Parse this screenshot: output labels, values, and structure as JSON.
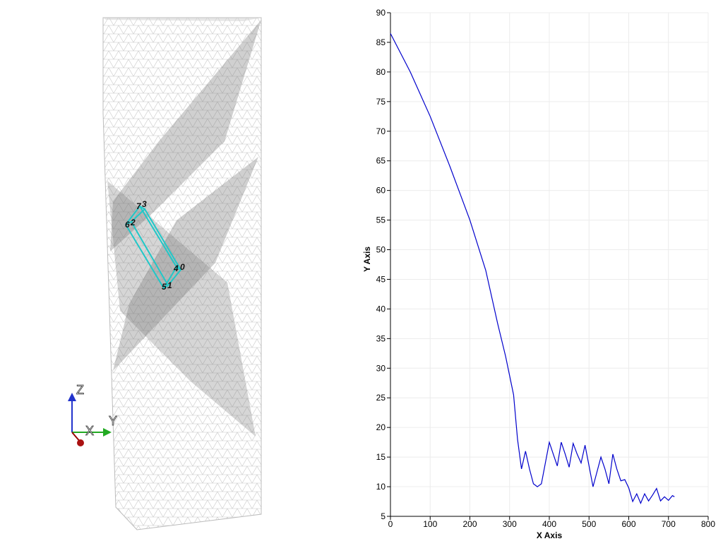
{
  "viewport": {
    "point_labels": [
      "7",
      "3",
      "6",
      "2",
      "4",
      "0",
      "5",
      "1"
    ],
    "axes_triad": {
      "x": "X",
      "y": "Y",
      "z": "Z"
    }
  },
  "chart_data": {
    "type": "line",
    "xlabel": "X Axis",
    "ylabel": "Y Axis",
    "xlim": [
      0,
      800
    ],
    "ylim": [
      5,
      90
    ],
    "xticks": [
      0,
      100,
      200,
      300,
      400,
      500,
      600,
      700,
      800
    ],
    "yticks": [
      5,
      10,
      15,
      20,
      25,
      30,
      35,
      40,
      45,
      50,
      55,
      60,
      65,
      70,
      75,
      80,
      85,
      90
    ],
    "grid": true,
    "series": [
      {
        "color": "#0000cc",
        "x": [
          0,
          50,
          100,
          150,
          200,
          240,
          270,
          290,
          310,
          320,
          330,
          340,
          350,
          360,
          370,
          380,
          390,
          400,
          410,
          420,
          430,
          440,
          450,
          460,
          470,
          480,
          490,
          500,
          510,
          520,
          530,
          540,
          550,
          560,
          570,
          580,
          590,
          600,
          610,
          620,
          630,
          640,
          650,
          660,
          670,
          680,
          690,
          700,
          710,
          715
        ],
        "y": [
          86.5,
          80,
          72.5,
          64,
          55,
          46.5,
          37.5,
          32,
          25.5,
          18,
          13,
          16,
          13,
          10.5,
          10,
          10.5,
          14,
          17.5,
          15.5,
          13.5,
          17.5,
          15.5,
          13.3,
          17.3,
          15.5,
          14,
          17,
          13.5,
          10,
          12.5,
          15,
          13,
          10.5,
          15.5,
          13,
          11,
          11.2,
          9.8,
          7.5,
          8.8,
          7.2,
          8.8,
          7.6,
          8.6,
          9.7,
          7.6,
          8.3,
          7.7,
          8.5,
          8.3
        ]
      }
    ]
  }
}
